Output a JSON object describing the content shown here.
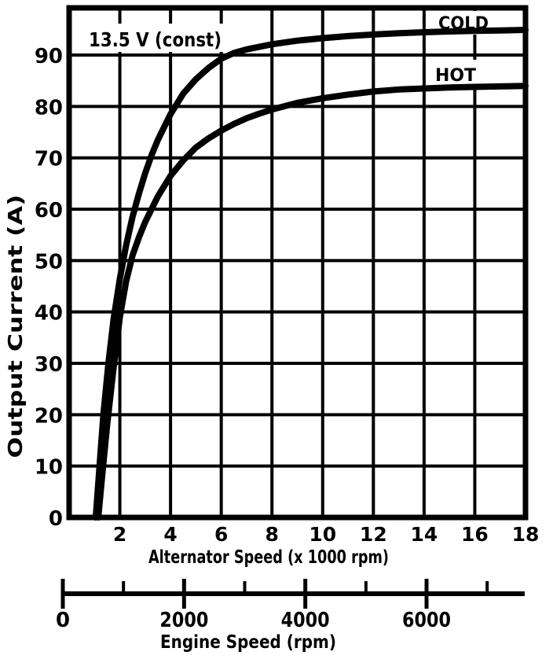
{
  "colors": {
    "ink": "#000000",
    "paper": "#ffffff"
  },
  "chart_data": {
    "type": "line",
    "title": "",
    "annotation": "13.5 V (const)",
    "xlabel": "Alternator Speed (x 1000 rpm)",
    "ylabel": "Output Current (A)",
    "xlim": [
      0,
      18
    ],
    "ylim": [
      0,
      99
    ],
    "x_ticks": [
      2,
      4,
      6,
      8,
      10,
      12,
      14,
      16,
      18
    ],
    "y_ticks": [
      0,
      10,
      20,
      30,
      40,
      50,
      60,
      70,
      80,
      90
    ],
    "grid": true,
    "legend_position": "inline-labels",
    "series": [
      {
        "name": "COLD",
        "x": [
          1.05,
          1.2,
          1.35,
          1.55,
          1.75,
          2.0,
          2.25,
          2.5,
          2.75,
          3.0,
          3.25,
          3.5,
          4.0,
          4.5,
          5.0,
          5.5,
          6.0,
          6.5,
          7.0,
          8.0,
          9.0,
          10.0,
          11.0,
          12.0,
          13.0,
          14.0,
          15.0,
          16.0,
          17.0,
          18.0
        ],
        "y": [
          0,
          10,
          20,
          30,
          38.5,
          46.5,
          53,
          58.5,
          63,
          67,
          70.5,
          73.5,
          78.5,
          82.5,
          85.3,
          87.5,
          89.3,
          90.4,
          91.1,
          92.1,
          92.8,
          93.3,
          93.7,
          94.0,
          94.25,
          94.45,
          94.6,
          94.7,
          94.8,
          94.9
        ]
      },
      {
        "name": "HOT",
        "x": [
          1.15,
          1.3,
          1.5,
          1.75,
          2.0,
          2.25,
          2.5,
          2.75,
          3.0,
          3.5,
          4.0,
          4.5,
          5.0,
          5.5,
          6.0,
          6.5,
          7.0,
          7.5,
          8.0,
          9.0,
          10.0,
          11.0,
          12.0,
          13.0,
          14.0,
          15.0,
          16.0,
          17.0,
          18.0
        ],
        "y": [
          0,
          8,
          18,
          29,
          39,
          46,
          51,
          54.5,
          57.5,
          62.5,
          66.5,
          69.5,
          72,
          73.8,
          75.3,
          76.6,
          77.7,
          78.6,
          79.4,
          80.7,
          81.6,
          82.3,
          82.9,
          83.3,
          83.5,
          83.7,
          83.8,
          83.9,
          84.0
        ]
      }
    ],
    "engine_axis": {
      "label": "Engine Speed (rpm)",
      "major_ticks": [
        0,
        2000,
        4000,
        6000
      ],
      "minor_ticks": [
        1000,
        3000,
        5000,
        7000
      ]
    }
  }
}
